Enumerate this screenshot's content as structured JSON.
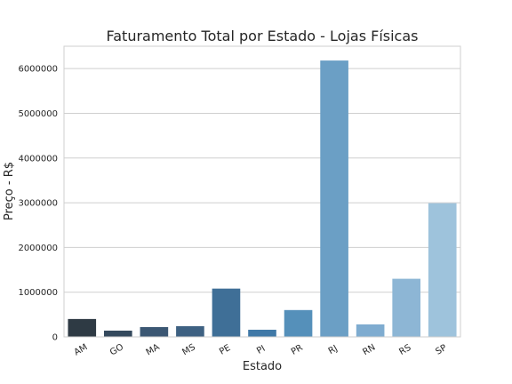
{
  "chart_data": {
    "type": "bar",
    "title": "Faturamento Total por Estado - Lojas Físicas",
    "xlabel": "Estado",
    "ylabel": "Preço - R$",
    "categories": [
      "AM",
      "GO",
      "MA",
      "MS",
      "PE",
      "PI",
      "PR",
      "RJ",
      "RN",
      "RS",
      "SP"
    ],
    "values": [
      400000,
      140000,
      220000,
      240000,
      1080000,
      160000,
      600000,
      6180000,
      280000,
      1300000,
      2990000
    ],
    "colors": [
      "#2e3a44",
      "#34495d",
      "#3b5773",
      "#3e6182",
      "#3f6f97",
      "#4079a7",
      "#5590ba",
      "#6b9fc5",
      "#7facd0",
      "#8db6d5",
      "#9ec3dc"
    ],
    "yticks": [
      0,
      1000000,
      2000000,
      3000000,
      4000000,
      5000000,
      6000000
    ],
    "ylim": [
      0,
      6500000
    ],
    "grid": true,
    "legend": "none"
  }
}
